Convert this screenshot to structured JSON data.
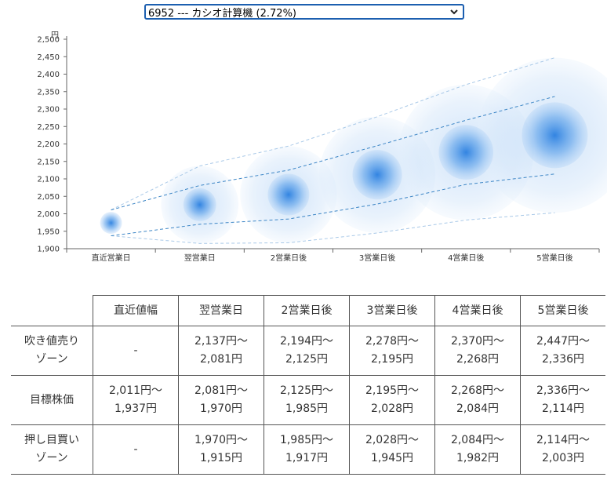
{
  "selector": {
    "value": "6952 --- カシオ計算機 (2.72%)"
  },
  "chart_data": {
    "type": "scatter",
    "y_unit": "円",
    "categories": [
      "直近営業日",
      "翌営業日",
      "2営業日後",
      "3営業日後",
      "4営業日後",
      "5営業日後"
    ],
    "y_ticks": [
      1900,
      1950,
      2000,
      2050,
      2100,
      2150,
      2200,
      2250,
      2300,
      2350,
      2400,
      2450,
      2500
    ],
    "y_tick_labels": [
      "1,900",
      "1,950",
      "2,000",
      "2,050",
      "2,100",
      "2,150",
      "2,200",
      "2,250",
      "2,300",
      "2,350",
      "2,400",
      "2,450",
      "2,500"
    ],
    "ylim": [
      1900,
      2500
    ],
    "center": [
      1974,
      2026,
      2055,
      2112,
      2176,
      2225
    ],
    "target_high": [
      2011,
      2081,
      2125,
      2195,
      2268,
      2336
    ],
    "target_low": [
      1937,
      1970,
      1985,
      2028,
      2084,
      2114
    ],
    "outer_high": [
      2011,
      2137,
      2194,
      2278,
      2370,
      2447
    ],
    "outer_low": [
      1937,
      1915,
      1917,
      1945,
      1982,
      2003
    ],
    "colors": {
      "bubble": "#2a7fe0",
      "halo": "#7fb5ee",
      "line": "#3d86c6",
      "axis": "#666666"
    }
  },
  "table": {
    "headers": [
      "",
      "直近値幅",
      "翌営業日",
      "2営業日後",
      "3営業日後",
      "4営業日後",
      "5営業日後"
    ],
    "rows": [
      {
        "label": [
          "吹き値売り",
          "ゾーン"
        ],
        "cells": [
          [
            "-"
          ],
          [
            "2,137円〜",
            "2,081円"
          ],
          [
            "2,194円〜",
            "2,125円"
          ],
          [
            "2,278円〜",
            "2,195円"
          ],
          [
            "2,370円〜",
            "2,268円"
          ],
          [
            "2,447円〜",
            "2,336円"
          ]
        ]
      },
      {
        "label": [
          "目標株価"
        ],
        "cells": [
          [
            "2,011円〜",
            "1,937円"
          ],
          [
            "2,081円〜",
            "1,970円"
          ],
          [
            "2,125円〜",
            "1,985円"
          ],
          [
            "2,195円〜",
            "2,028円"
          ],
          [
            "2,268円〜",
            "2,084円"
          ],
          [
            "2,336円〜",
            "2,114円"
          ]
        ]
      },
      {
        "label": [
          "押し目買い",
          "ゾーン"
        ],
        "cells": [
          [
            "-"
          ],
          [
            "1,970円〜",
            "1,915円"
          ],
          [
            "1,985円〜",
            "1,917円"
          ],
          [
            "2,028円〜",
            "1,945円"
          ],
          [
            "2,084円〜",
            "1,982円"
          ],
          [
            "2,114円〜",
            "2,003円"
          ]
        ]
      }
    ]
  }
}
